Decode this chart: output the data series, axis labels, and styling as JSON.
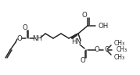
{
  "bg_color": "#ffffff",
  "line_color": "#2a2a2a",
  "lw": 1.1,
  "figsize": [
    1.79,
    0.96
  ],
  "dpi": 100,
  "xlim": [
    0,
    179
  ],
  "ylim": [
    0,
    96
  ]
}
